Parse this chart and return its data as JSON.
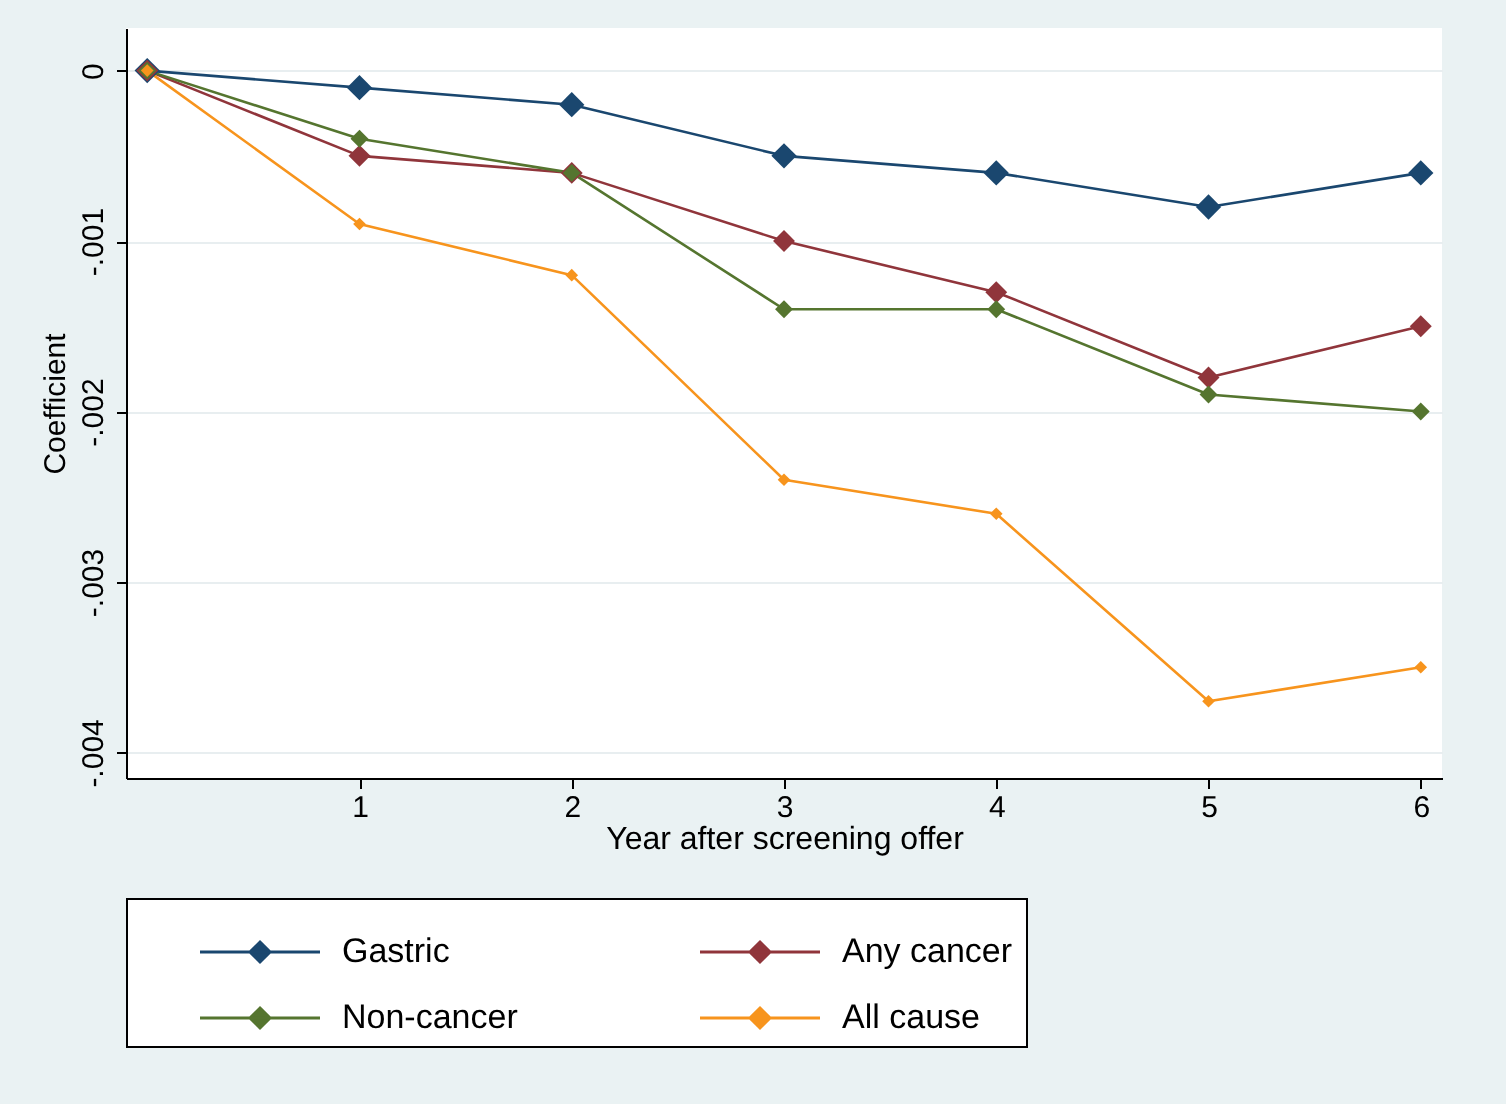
{
  "chart_data": {
    "type": "line",
    "xlabel": "Year after screening offer",
    "ylabel": "Coefficient",
    "x": [
      0,
      1,
      2,
      3,
      4,
      5,
      6
    ],
    "series": [
      {
        "name": "Gastric",
        "color": "#1a476f",
        "values": [
          0,
          -0.0001,
          -0.0002,
          -0.0005,
          -0.0006,
          -0.0008,
          -0.0006
        ]
      },
      {
        "name": "Any cancer",
        "color": "#90353b",
        "values": [
          0,
          -0.0005,
          -0.0006,
          -0.001,
          -0.0013,
          -0.0018,
          -0.0015
        ]
      },
      {
        "name": "Non-cancer",
        "color": "#55752f",
        "values": [
          0,
          -0.0004,
          -0.0006,
          -0.0014,
          -0.0014,
          -0.0019,
          -0.002
        ]
      },
      {
        "name": "All cause",
        "color": "#f7941d",
        "values": [
          0,
          -0.0009,
          -0.0012,
          -0.0024,
          -0.0026,
          -0.0037,
          -0.0035
        ]
      }
    ],
    "xlim": [
      -0.1,
      6.1
    ],
    "xticks": [
      1,
      2,
      3,
      4,
      5,
      6
    ],
    "ylim": [
      -0.00415,
      0.00025
    ],
    "yticks": [
      {
        "value": 0,
        "label": "0"
      },
      {
        "value": -0.001,
        "label": "-.001"
      },
      {
        "value": -0.002,
        "label": "-.002"
      },
      {
        "value": -0.003,
        "label": "-.003"
      },
      {
        "value": -0.004,
        "label": "-.004"
      }
    ],
    "grid": "y",
    "legend": "bottom",
    "marker": "diamond",
    "line_style": "solid"
  }
}
